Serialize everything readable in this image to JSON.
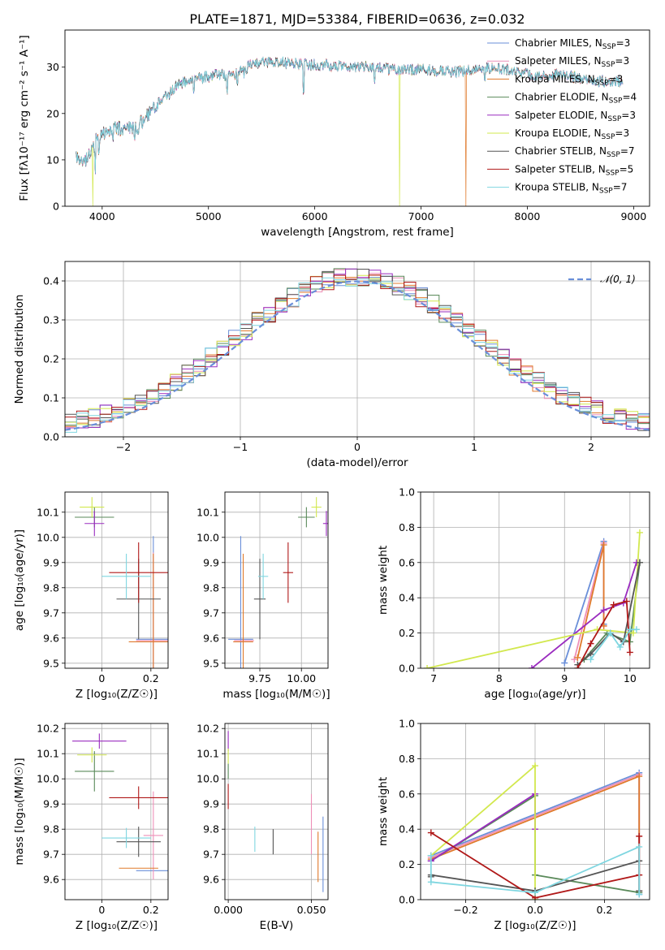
{
  "title": "PLATE=1871, MJD=53384, FIBERID=0636, z=0.032",
  "colors": {
    "chabrier_miles": "#6a8fd9",
    "salpeter_miles": "#ee8fb8",
    "kroupa_miles": "#e07a2c",
    "chabrier_elodie": "#5a8a5a",
    "salpeter_elodie": "#9a2bbf",
    "kroupa_elodie": "#d2e84e",
    "chabrier_stelib": "#555555",
    "salpeter_stelib": "#b01818",
    "kroupa_stelib": "#7fd6e0"
  },
  "chart_data": [
    {
      "id": "spectrum",
      "type": "line",
      "xlabel": "wavelength [Angstrom, rest frame]",
      "ylabel": "Flux [fλ10⁻¹⁷ erg cm⁻² s⁻¹ A⁻¹]",
      "xlim": [
        3650,
        9150
      ],
      "ylim": [
        0,
        38
      ],
      "xticks": [
        4000,
        5000,
        6000,
        7000,
        8000,
        9000
      ],
      "yticks": [
        0,
        10,
        20,
        30
      ],
      "legend_position": "top-right",
      "legend": [
        {
          "label": "Chabrier MILES, N",
          "sub": "SSP",
          "eq": "=3",
          "color_key": "chabrier_miles"
        },
        {
          "label": "Salpeter MILES, N",
          "sub": "SSP",
          "eq": "=3",
          "color_key": "salpeter_miles"
        },
        {
          "label": "Kroupa MILES, N",
          "sub": "SSP",
          "eq": "=3",
          "color_key": "kroupa_miles"
        },
        {
          "label": "Chabrier ELODIE, N",
          "sub": "SSP",
          "eq": "=4",
          "color_key": "chabrier_elodie"
        },
        {
          "label": "Salpeter ELODIE, N",
          "sub": "SSP",
          "eq": "=3",
          "color_key": "salpeter_elodie"
        },
        {
          "label": "Kroupa ELODIE, N",
          "sub": "SSP",
          "eq": "=3",
          "color_key": "kroupa_elodie"
        },
        {
          "label": "Chabrier STELIB, N",
          "sub": "SSP",
          "eq": "=7",
          "color_key": "chabrier_stelib"
        },
        {
          "label": "Salpeter STELIB, N",
          "sub": "SSP",
          "eq": "=5",
          "color_key": "salpeter_stelib"
        },
        {
          "label": "Kroupa STELIB, N",
          "sub": "SSP",
          "eq": "=7",
          "color_key": "kroupa_stelib"
        }
      ],
      "continuum": [
        [
          3750,
          11
        ],
        [
          3800,
          9.5
        ],
        [
          3850,
          10
        ],
        [
          3900,
          12
        ],
        [
          3950,
          14.5
        ],
        [
          4000,
          15.5
        ],
        [
          4100,
          16.5
        ],
        [
          4200,
          17
        ],
        [
          4300,
          16.5
        ],
        [
          4400,
          19
        ],
        [
          4500,
          21.5
        ],
        [
          4600,
          23.5
        ],
        [
          4700,
          26
        ],
        [
          4800,
          27
        ],
        [
          4900,
          27.5
        ],
        [
          5000,
          28
        ],
        [
          5100,
          28.5
        ],
        [
          5200,
          28
        ],
        [
          5300,
          29
        ],
        [
          5400,
          30.5
        ],
        [
          5500,
          31
        ],
        [
          5700,
          31
        ],
        [
          5900,
          30.5
        ],
        [
          6100,
          30.5
        ],
        [
          6300,
          30
        ],
        [
          6500,
          30
        ],
        [
          6700,
          29.5
        ],
        [
          7000,
          29.5
        ],
        [
          7300,
          29
        ],
        [
          7500,
          29.5
        ],
        [
          7700,
          30
        ],
        [
          7900,
          29
        ],
        [
          8100,
          28
        ],
        [
          8300,
          28.5
        ],
        [
          8500,
          27.5
        ],
        [
          8700,
          27
        ],
        [
          8900,
          27
        ]
      ],
      "dropouts": [
        {
          "series": "kroupa_elodie",
          "x": 3910
        },
        {
          "series": "kroupa_elodie",
          "x": 6800
        },
        {
          "series": "kroupa_miles",
          "x": 7420
        }
      ]
    },
    {
      "id": "residuals",
      "type": "area",
      "xlabel": "(data-model)/error",
      "ylabel": "Normed distribution",
      "xlim": [
        -2.5,
        2.5
      ],
      "ylim": [
        0,
        0.45
      ],
      "xticks": [
        -2,
        -1,
        0,
        1,
        2
      ],
      "yticks": [
        0.0,
        0.1,
        0.2,
        0.3,
        0.4
      ],
      "grid": true,
      "legend_position": "top-right",
      "reference_curve": "N(0,1)",
      "bins": 50
    },
    {
      "id": "age_vs_Z",
      "type": "scatter",
      "xlabel": "Z [log₁₀(Z/Z☉)]",
      "ylabel": "age  [log₁₀(age/yr)]",
      "xlim": [
        -0.15,
        0.27
      ],
      "ylim": [
        9.48,
        10.18
      ],
      "xticks": [
        0.0,
        0.2
      ],
      "yticks": [
        9.5,
        9.6,
        9.7,
        9.8,
        9.9,
        10.0,
        10.1
      ],
      "grid": true,
      "points": [
        {
          "series": "chabrier_miles",
          "x": 0.21,
          "y": 9.595,
          "xerr": 0.07,
          "yerr": 0.41
        },
        {
          "series": "salpeter_miles",
          "x": 0.21,
          "y": 9.59,
          "xerr": 0.07,
          "yerr": 0.35
        },
        {
          "series": "kroupa_miles",
          "x": 0.21,
          "y": 9.585,
          "xerr": 0.1,
          "yerr": 0.35
        },
        {
          "series": "chabrier_elodie",
          "x": -0.03,
          "y": 10.08,
          "xerr": 0.08,
          "yerr": 0.04
        },
        {
          "series": "salpeter_elodie",
          "x": -0.03,
          "y": 10.055,
          "xerr": 0.04,
          "yerr": 0.05
        },
        {
          "series": "kroupa_elodie",
          "x": -0.04,
          "y": 10.12,
          "xerr": 0.05,
          "yerr": 0.04
        },
        {
          "series": "chabrier_stelib",
          "x": 0.15,
          "y": 9.755,
          "xerr": 0.09,
          "yerr": 0.16
        },
        {
          "series": "salpeter_stelib",
          "x": 0.15,
          "y": 9.86,
          "xerr": 0.12,
          "yerr": 0.12
        },
        {
          "series": "kroupa_stelib",
          "x": 0.1,
          "y": 9.845,
          "xerr": 0.1,
          "yerr": 0.09
        }
      ]
    },
    {
      "id": "age_vs_mass",
      "type": "scatter",
      "xlabel": "mass [log₁₀(M/M☉)]",
      "ylabel": "",
      "xlim": [
        9.54,
        10.16
      ],
      "ylim": [
        9.48,
        10.18
      ],
      "xticks": [
        9.75,
        10.0
      ],
      "xticklabels": [
        "9.75",
        "10.00"
      ],
      "yticks": [
        9.5,
        9.6,
        9.7,
        9.8,
        9.9,
        10.0,
        10.1
      ],
      "grid": true,
      "points": [
        {
          "series": "chabrier_miles",
          "x": 9.635,
          "y": 9.595,
          "xerr": 0.075,
          "yerr": 0.41
        },
        {
          "series": "salpeter_miles",
          "x": 9.655,
          "y": 9.59,
          "xerr": 0.06,
          "yerr": 0.0
        },
        {
          "series": "kroupa_miles",
          "x": 9.65,
          "y": 9.585,
          "xerr": 0.06,
          "yerr": 0.35
        },
        {
          "series": "chabrier_elodie",
          "x": 10.03,
          "y": 10.08,
          "xerr": 0.05,
          "yerr": 0.04
        },
        {
          "series": "salpeter_elodie",
          "x": 10.15,
          "y": 10.055,
          "xerr": 0.02,
          "yerr": 0.05
        },
        {
          "series": "kroupa_elodie",
          "x": 10.09,
          "y": 10.12,
          "xerr": 0.03,
          "yerr": 0.04
        },
        {
          "series": "chabrier_stelib",
          "x": 9.75,
          "y": 9.755,
          "xerr": 0.035,
          "yerr": 0.16
        },
        {
          "series": "salpeter_stelib",
          "x": 9.92,
          "y": 9.86,
          "xerr": 0.03,
          "yerr": 0.12
        },
        {
          "series": "kroupa_stelib",
          "x": 9.77,
          "y": 9.845,
          "xerr": 0.03,
          "yerr": 0.09
        }
      ]
    },
    {
      "id": "weight_vs_age",
      "type": "line",
      "xlabel": "age  [log₁₀(age/yr)]",
      "ylabel": "mass weight",
      "xlim": [
        6.8,
        10.3
      ],
      "ylim": [
        0.0,
        1.0
      ],
      "xticks": [
        7,
        8,
        9,
        10
      ],
      "yticks": [
        0.0,
        0.2,
        0.4,
        0.6,
        0.8,
        1.0
      ],
      "grid": true,
      "series": [
        {
          "key": "chabrier_miles",
          "x": [
            9.0,
            9.6,
            9.6
          ],
          "y": [
            0.03,
            0.72,
            0.25
          ]
        },
        {
          "key": "salpeter_miles",
          "x": [
            9.15,
            9.6,
            9.6
          ],
          "y": [
            0.05,
            0.71,
            0.24
          ]
        },
        {
          "key": "kroupa_miles",
          "x": [
            9.2,
            9.6,
            9.6
          ],
          "y": [
            0.06,
            0.7,
            0.24
          ]
        },
        {
          "key": "chabrier_elodie",
          "x": [
            9.3,
            9.65,
            10.0,
            10.15
          ],
          "y": [
            0.05,
            0.2,
            0.15,
            0.6
          ]
        },
        {
          "key": "salpeter_elodie",
          "x": [
            8.5,
            9.6,
            9.9,
            10.1
          ],
          "y": [
            0.0,
            0.33,
            0.37,
            0.6
          ]
        },
        {
          "key": "kroupa_elodie",
          "x": [
            6.9,
            9.5,
            10.05,
            10.15
          ],
          "y": [
            0.0,
            0.22,
            0.2,
            0.77
          ]
        },
        {
          "key": "chabrier_stelib",
          "x": [
            9.2,
            9.4,
            9.7,
            9.9,
            10.15
          ],
          "y": [
            0.02,
            0.08,
            0.2,
            0.15,
            0.6
          ]
        },
        {
          "key": "salpeter_stelib",
          "x": [
            9.2,
            9.4,
            9.75,
            9.95,
            10.0
          ],
          "y": [
            0.0,
            0.14,
            0.36,
            0.38,
            0.09
          ]
        },
        {
          "key": "kroupa_stelib",
          "x": [
            9.4,
            9.7,
            9.85,
            10.0,
            10.1
          ],
          "y": [
            0.05,
            0.2,
            0.12,
            0.22,
            0.22
          ]
        }
      ]
    },
    {
      "id": "mass_vs_Z",
      "type": "scatter",
      "xlabel": "Z [log₁₀(Z/Z☉)]",
      "ylabel": "mass [log₁₀(M/M☉)]",
      "xlim": [
        -0.15,
        0.27
      ],
      "ylim": [
        9.52,
        10.22
      ],
      "xticks": [
        0.0,
        0.2
      ],
      "yticks": [
        9.6,
        9.7,
        9.8,
        9.9,
        10.0,
        10.1,
        10.2
      ],
      "grid": true,
      "points": [
        {
          "series": "chabrier_miles",
          "x": 0.21,
          "y": 9.635,
          "xerr": 0.07,
          "yerr": 0.0
        },
        {
          "series": "salpeter_miles",
          "x": 0.21,
          "y": 9.775,
          "xerr": 0.04,
          "yerr": 0.175
        },
        {
          "series": "kroupa_miles",
          "x": 0.15,
          "y": 9.645,
          "xerr": 0.08,
          "yerr": 0.0
        },
        {
          "series": "chabrier_elodie",
          "x": -0.03,
          "y": 10.03,
          "xerr": 0.08,
          "yerr": 0.08
        },
        {
          "series": "salpeter_elodie",
          "x": -0.01,
          "y": 10.15,
          "xerr": 0.11,
          "yerr": 0.03
        },
        {
          "series": "kroupa_elodie",
          "x": -0.04,
          "y": 10.095,
          "xerr": 0.06,
          "yerr": 0.03
        },
        {
          "series": "chabrier_stelib",
          "x": 0.15,
          "y": 9.75,
          "xerr": 0.09,
          "yerr": 0.06
        },
        {
          "series": "salpeter_stelib",
          "x": 0.15,
          "y": 9.925,
          "xerr": 0.12,
          "yerr": 0.045
        },
        {
          "series": "kroupa_stelib",
          "x": 0.1,
          "y": 9.765,
          "xerr": 0.1,
          "yerr": 0.04
        }
      ]
    },
    {
      "id": "mass_vs_ebv",
      "type": "scatter",
      "xlabel": "E(B-V)",
      "ylabel": "",
      "xlim": [
        -0.002,
        0.06
      ],
      "ylim": [
        9.52,
        10.22
      ],
      "xticks": [
        0.0,
        0.05
      ],
      "xticklabels": [
        "0.000",
        "0.050"
      ],
      "yticks": [
        9.6,
        9.7,
        9.8,
        9.9,
        10.0,
        10.1,
        10.2
      ],
      "grid": true,
      "points": [
        {
          "series": "chabrier_miles",
          "x": 0.057,
          "y": 9.7,
          "xerr": 0.0,
          "yerr": 0.15
        },
        {
          "series": "salpeter_miles",
          "x": 0.05,
          "y": 9.82,
          "xerr": 0.0,
          "yerr": 0.12
        },
        {
          "series": "kroupa_miles",
          "x": 0.054,
          "y": 9.69,
          "xerr": 0.0,
          "yerr": 0.1
        },
        {
          "series": "chabrier_elodie",
          "x": 0.0,
          "y": 10.03,
          "xerr": 0.0,
          "yerr": 0.03
        },
        {
          "series": "salpeter_elodie",
          "x": 0.0,
          "y": 10.15,
          "xerr": 0.0,
          "yerr": 0.04
        },
        {
          "series": "kroupa_elodie",
          "x": 0.0,
          "y": 10.09,
          "xerr": 0.0,
          "yerr": 0.03
        },
        {
          "series": "chabrier_stelib",
          "x": 0.027,
          "y": 9.75,
          "xerr": 0.0,
          "yerr": 0.05
        },
        {
          "series": "salpeter_stelib",
          "x": 0.0,
          "y": 9.93,
          "xerr": 0.0,
          "yerr": 0.05
        },
        {
          "series": "kroupa_stelib",
          "x": 0.016,
          "y": 9.76,
          "xerr": 0.0,
          "yerr": 0.05
        }
      ]
    },
    {
      "id": "weight_vs_Z",
      "type": "line",
      "xlabel": "Z [log₁₀(Z/Z☉)]",
      "ylabel": "mass weight",
      "xlim": [
        -0.33,
        0.33
      ],
      "ylim": [
        0.0,
        1.0
      ],
      "xticks": [
        -0.2,
        0.0,
        0.2
      ],
      "xticklabels": [
        "−0.2",
        "0.0",
        "0.2"
      ],
      "yticks": [
        0.0,
        0.2,
        0.4,
        0.6,
        0.8,
        1.0
      ],
      "grid": true,
      "series": [
        {
          "key": "chabrier_miles",
          "x": [
            -0.3,
            0.3,
            0.3
          ],
          "y": [
            0.25,
            0.72,
            0.03
          ]
        },
        {
          "key": "salpeter_miles",
          "x": [
            -0.3,
            0.3,
            0.3
          ],
          "y": [
            0.24,
            0.71,
            0.04
          ]
        },
        {
          "key": "kroupa_miles",
          "x": [
            -0.3,
            0.3,
            0.3
          ],
          "y": [
            0.23,
            0.7,
            0.05
          ]
        },
        {
          "key": "chabrier_elodie",
          "x": [
            -0.3,
            0.0,
            0.0,
            0.3
          ],
          "y": [
            0.22,
            0.59,
            0.14,
            0.04
          ]
        },
        {
          "key": "salpeter_elodie",
          "x": [
            -0.3,
            0.0,
            0.0
          ],
          "y": [
            0.22,
            0.6,
            0.4
          ]
        },
        {
          "key": "kroupa_elodie",
          "x": [
            -0.3,
            0.0,
            0.0
          ],
          "y": [
            0.25,
            0.76,
            0.0
          ]
        },
        {
          "key": "chabrier_stelib",
          "x": [
            -0.3,
            -0.3,
            0.0,
            0.3,
            0.3
          ],
          "y": [
            0.13,
            0.14,
            0.05,
            0.22,
            0.05
          ]
        },
        {
          "key": "salpeter_stelib",
          "x": [
            -0.3,
            0.0,
            0.3,
            0.3
          ],
          "y": [
            0.38,
            0.01,
            0.14,
            0.36
          ]
        },
        {
          "key": "kroupa_stelib",
          "x": [
            -0.3,
            -0.3,
            0.0,
            0.3,
            0.3
          ],
          "y": [
            0.25,
            0.1,
            0.04,
            0.3,
            0.03
          ]
        }
      ]
    }
  ]
}
